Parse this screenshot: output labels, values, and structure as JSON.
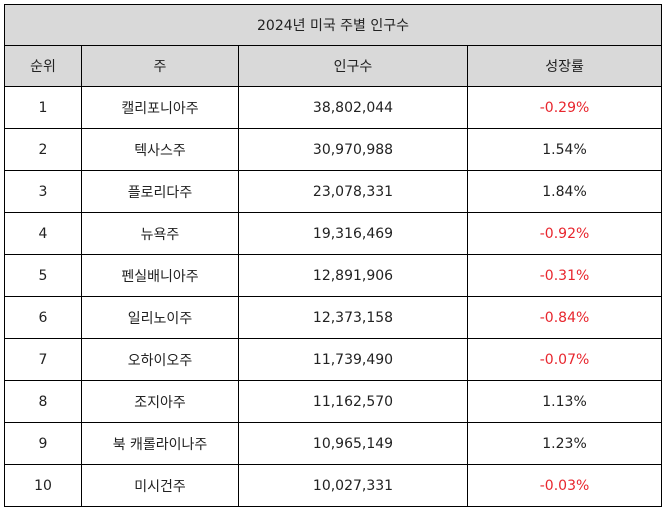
{
  "table": {
    "title": "2024년 미국 주별 인구수",
    "headers": [
      "순위",
      "주",
      "인구수",
      "성장률"
    ],
    "rows": [
      {
        "rank": "1",
        "state": "캘리포니아주",
        "population": "38,802,044",
        "growth": "-0.29%"
      },
      {
        "rank": "2",
        "state": "텍사스주",
        "population": "30,970,988",
        "growth": "1.54%"
      },
      {
        "rank": "3",
        "state": "플로리다주",
        "population": "23,078,331",
        "growth": "1.84%"
      },
      {
        "rank": "4",
        "state": "뉴욕주",
        "population": "19,316,469",
        "growth": "-0.92%"
      },
      {
        "rank": "5",
        "state": "펜실배니아주",
        "population": "12,891,906",
        "growth": "-0.31%"
      },
      {
        "rank": "6",
        "state": "일리노이주",
        "population": "12,373,158",
        "growth": "-0.84%"
      },
      {
        "rank": "7",
        "state": "오하이오주",
        "population": "11,739,490",
        "growth": "-0.07%"
      },
      {
        "rank": "8",
        "state": "조지아주",
        "population": "11,162,570",
        "growth": "1.13%"
      },
      {
        "rank": "9",
        "state": "북 캐롤라이나주",
        "population": "10,965,149",
        "growth": "1.23%"
      },
      {
        "rank": "10",
        "state": "미시건주",
        "population": "10,027,331",
        "growth": "-0.03%"
      }
    ]
  },
  "colors": {
    "header_bg": "#d9d9d9",
    "negative_growth": "#e8262e",
    "text": "#222222",
    "border": "#000000"
  }
}
